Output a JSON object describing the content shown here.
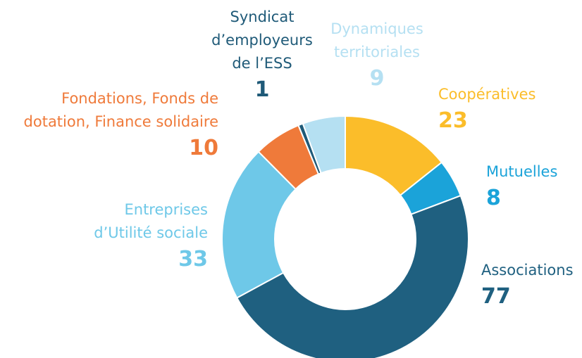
{
  "chart_data": {
    "type": "donut",
    "categories": [
      "Coopératives",
      "Mutuelles",
      "Associations",
      "Entreprises d’Utilité sociale",
      "Fondations, Fonds de dotation, Finance solidaire",
      "Syndicat d’employeurs de l’ESS",
      "Dynamiques territoriales"
    ],
    "values": [
      23,
      8,
      77,
      33,
      10,
      1,
      9
    ],
    "colors": [
      "#fbbd2a",
      "#1ba3d9",
      "#1f6080",
      "#6ec8e8",
      "#ef7a3a",
      "#1f5a78",
      "#b5e0f2"
    ]
  }
}
